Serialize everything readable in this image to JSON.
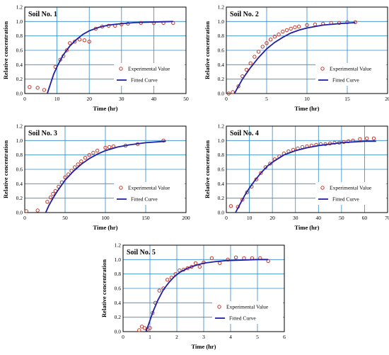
{
  "chart_data": [
    {
      "type": "scatter",
      "title": "Soil No. 1",
      "xlabel": "Time (hr)",
      "ylabel": "Relative concentration",
      "xlim": [
        0,
        50
      ],
      "ylim": [
        0,
        1.2
      ],
      "xticks": [
        "0",
        "10",
        "20",
        "30",
        "40",
        "50"
      ],
      "yticks": [
        "0.0",
        "0.2",
        "0.4",
        "0.6",
        "0.8",
        "1.0",
        "1.2"
      ],
      "grid": true,
      "legend_position": "bottom-right",
      "series": [
        {
          "name": "Experimental Value",
          "kind": "markers",
          "color": "#c0392b",
          "x": [
            1.5,
            4,
            6,
            9.5,
            11,
            12,
            13,
            14,
            15.5,
            17,
            18.5,
            20,
            22,
            24,
            26,
            28,
            30,
            32,
            36,
            40,
            43,
            46
          ],
          "y": [
            0.09,
            0.08,
            0.05,
            0.37,
            0.47,
            0.52,
            0.6,
            0.7,
            0.72,
            0.75,
            0.74,
            0.72,
            0.9,
            0.93,
            0.94,
            0.94,
            0.96,
            0.97,
            0.98,
            0.98,
            0.98,
            0.98
          ]
        },
        {
          "name": "Fitted Curve",
          "kind": "line",
          "color": "#1f1fa8",
          "x": [
            7,
            8,
            9,
            10,
            11,
            12,
            14,
            16,
            18,
            20,
            23,
            26,
            30,
            34,
            38,
            42,
            46
          ],
          "y": [
            0.0,
            0.14,
            0.27,
            0.37,
            0.46,
            0.54,
            0.66,
            0.75,
            0.82,
            0.87,
            0.92,
            0.95,
            0.97,
            0.985,
            0.99,
            0.995,
            1.0
          ]
        }
      ]
    },
    {
      "type": "scatter",
      "title": "Soil No. 2",
      "xlabel": "Time (hr)",
      "ylabel": "Relative concentration",
      "xlim": [
        0,
        20
      ],
      "ylim": [
        0,
        1.2
      ],
      "xticks": [
        "0",
        "5",
        "10",
        "15",
        "20"
      ],
      "yticks": [
        "0.0",
        "0.2",
        "0.4",
        "0.6",
        "0.8",
        "1.0",
        "1.2"
      ],
      "grid": true,
      "legend_position": "bottom-right",
      "series": [
        {
          "name": "Experimental Value",
          "kind": "markers",
          "color": "#c0392b",
          "x": [
            0.3,
            0.8,
            1.5,
            2.0,
            2.5,
            3.0,
            3.5,
            4.0,
            4.5,
            5.0,
            5.5,
            6.0,
            6.5,
            7.0,
            7.5,
            8.0,
            8.5,
            9.0,
            10.0,
            11.0,
            12.0,
            13.0,
            14.0,
            15.0,
            16.0
          ],
          "y": [
            0.0,
            0.02,
            0.1,
            0.24,
            0.33,
            0.42,
            0.51,
            0.58,
            0.65,
            0.7,
            0.75,
            0.79,
            0.82,
            0.86,
            0.88,
            0.9,
            0.92,
            0.93,
            0.95,
            0.96,
            0.97,
            0.98,
            0.98,
            0.99,
            0.99
          ]
        },
        {
          "name": "Fitted Curve",
          "kind": "line",
          "color": "#1f1fa8",
          "x": [
            1.0,
            1.5,
            2,
            2.5,
            3,
            3.5,
            4,
            5,
            6,
            7,
            8,
            9,
            10,
            12,
            14,
            16
          ],
          "y": [
            0.0,
            0.1,
            0.2,
            0.28,
            0.36,
            0.43,
            0.5,
            0.62,
            0.71,
            0.78,
            0.84,
            0.88,
            0.91,
            0.95,
            0.97,
            0.985
          ]
        }
      ]
    },
    {
      "type": "scatter",
      "title": "Soil No. 3",
      "xlabel": "Time (hr)",
      "ylabel": "Relative concentration",
      "xlim": [
        0,
        200
      ],
      "ylim": [
        0,
        1.2
      ],
      "xticks": [
        "0",
        "50",
        "100",
        "150",
        "200"
      ],
      "yticks": [
        "0.0",
        "0.2",
        "0.4",
        "0.6",
        "0.8",
        "1.0",
        "1.2"
      ],
      "grid": true,
      "legend_position": "bottom-right",
      "series": [
        {
          "name": "Experimental Value",
          "kind": "markers",
          "color": "#c0392b",
          "x": [
            2,
            16,
            28,
            32,
            35,
            38,
            42,
            46,
            50,
            54,
            58,
            62,
            66,
            70,
            75,
            80,
            85,
            90,
            100,
            105,
            110,
            125,
            140,
            172
          ],
          "y": [
            0.02,
            0.03,
            0.15,
            0.21,
            0.26,
            0.3,
            0.36,
            0.42,
            0.49,
            0.53,
            0.58,
            0.63,
            0.67,
            0.71,
            0.76,
            0.8,
            0.83,
            0.86,
            0.9,
            0.91,
            0.92,
            0.93,
            0.95,
            1.0
          ]
        },
        {
          "name": "Fitted Curve",
          "kind": "line",
          "color": "#1f1fa8",
          "x": [
            26,
            30,
            35,
            40,
            50,
            60,
            70,
            80,
            90,
            100,
            115,
            130,
            150,
            175
          ],
          "y": [
            0.0,
            0.1,
            0.2,
            0.29,
            0.45,
            0.57,
            0.67,
            0.75,
            0.81,
            0.86,
            0.91,
            0.94,
            0.97,
            0.99
          ]
        }
      ]
    },
    {
      "type": "scatter",
      "title": "Soil No. 4",
      "xlabel": "Time (hr)",
      "ylabel": "Relative concentration",
      "xlim": [
        0,
        70
      ],
      "ylim": [
        0,
        1.2
      ],
      "xticks": [
        "0",
        "10",
        "20",
        "30",
        "40",
        "50",
        "60",
        "70"
      ],
      "yticks": [
        "0.0",
        "0.2",
        "0.4",
        "0.6",
        "0.8",
        "1.0",
        "1.2"
      ],
      "grid": true,
      "legend_position": "bottom-right",
      "series": [
        {
          "name": "Experimental Value",
          "kind": "markers",
          "color": "#c0392b",
          "x": [
            2,
            5,
            7,
            9,
            11,
            13,
            15,
            17,
            19,
            21,
            23,
            25,
            27,
            29,
            31,
            33,
            35,
            37,
            39,
            41,
            43,
            45,
            47,
            49,
            51,
            53,
            55,
            58,
            61,
            64
          ],
          "y": [
            0.09,
            0.08,
            0.18,
            0.28,
            0.36,
            0.46,
            0.55,
            0.63,
            0.68,
            0.74,
            0.78,
            0.82,
            0.85,
            0.87,
            0.89,
            0.91,
            0.92,
            0.93,
            0.94,
            0.95,
            0.95,
            0.96,
            0.97,
            0.97,
            0.98,
            0.99,
            1.0,
            1.02,
            1.03,
            1.03
          ]
        },
        {
          "name": "Fitted Curve",
          "kind": "line",
          "color": "#1f1fa8",
          "x": [
            4,
            6,
            8,
            10,
            12,
            15,
            18,
            21,
            25,
            30,
            35,
            40,
            45,
            50,
            55,
            60,
            65
          ],
          "y": [
            0.0,
            0.12,
            0.24,
            0.34,
            0.43,
            0.55,
            0.65,
            0.72,
            0.8,
            0.86,
            0.9,
            0.93,
            0.95,
            0.97,
            0.98,
            0.99,
            0.99
          ]
        }
      ]
    },
    {
      "type": "scatter",
      "title": "Soil No. 5",
      "xlabel": "Time (hr)",
      "ylabel": "Relative concentration",
      "xlim": [
        0,
        6
      ],
      "ylim": [
        0,
        1.2
      ],
      "xticks": [
        "0",
        "1",
        "2",
        "3",
        "4",
        "5",
        "6"
      ],
      "yticks": [
        "0.0",
        "0.2",
        "0.4",
        "0.6",
        "0.8",
        "1.0",
        "1.2"
      ],
      "grid": true,
      "legend_position": "bottom-right",
      "series": [
        {
          "name": "Experimental Value",
          "kind": "markers",
          "color": "#c0392b",
          "x": [
            0.6,
            0.7,
            0.8,
            0.9,
            1.0,
            1.1,
            1.2,
            1.35,
            1.5,
            1.65,
            1.8,
            1.95,
            2.1,
            2.25,
            2.4,
            2.55,
            2.7,
            2.85,
            3.0,
            3.3,
            3.6,
            3.9,
            4.2,
            4.5,
            4.8,
            5.1,
            5.4
          ],
          "y": [
            0.02,
            0.07,
            0.05,
            0.03,
            0.05,
            0.26,
            0.4,
            0.57,
            0.6,
            0.72,
            0.75,
            0.8,
            0.85,
            0.86,
            0.88,
            0.9,
            0.95,
            0.9,
            0.96,
            1.02,
            0.95,
            1.0,
            1.03,
            1.02,
            1.02,
            1.02,
            0.98
          ]
        },
        {
          "name": "Fitted Curve",
          "kind": "line",
          "color": "#1f1fa8",
          "x": [
            0.85,
            0.95,
            1.05,
            1.15,
            1.3,
            1.5,
            1.7,
            1.9,
            2.1,
            2.4,
            2.7,
            3.0,
            3.4,
            3.8,
            4.2,
            4.6,
            5.0,
            5.4
          ],
          "y": [
            0.0,
            0.1,
            0.21,
            0.31,
            0.44,
            0.58,
            0.68,
            0.76,
            0.82,
            0.88,
            0.92,
            0.95,
            0.97,
            0.985,
            0.99,
            0.995,
            1.0,
            1.0
          ]
        }
      ]
    }
  ]
}
